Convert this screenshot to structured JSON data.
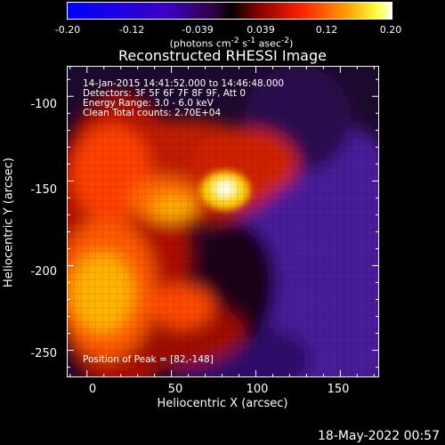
{
  "colorbar": {
    "ticks": [
      "-0.20",
      "-0.12",
      "-0.039",
      "0.039",
      "0.12",
      "0.20"
    ],
    "unit_html": "(photons cm<sup>-2</sup> s<sup>-1</sup> asec<sup>-2</sup>)",
    "range": [
      -0.2,
      0.2
    ]
  },
  "chart_data": {
    "type": "heatmap",
    "title": "Reconstructed RHESSI Image",
    "xlabel": "Heliocentric X (arcsec)",
    "ylabel": "Heliocentric Y (arcsec)",
    "xlim": [
      -12,
      173
    ],
    "ylim": [
      -266,
      -82
    ],
    "x_ticks": [
      "0",
      "50",
      "100",
      "150"
    ],
    "y_ticks": [
      "-100",
      "-150",
      "-200",
      "-250"
    ],
    "info_lines": [
      "14-Jan-2015 14:41:52.000 to 14:46:48.000",
      "Detectors: 3F 5F 6F 7F 8F 9F, Att 0",
      "Energy Range: 3.0 - 6.0 keV",
      "Clean    Total counts: 2.70E+04"
    ],
    "peak_label": "Position of Peak = [82,-148]",
    "peak": [
      82,
      -148
    ],
    "colormap": "blue-purple-red-yellow-white"
  },
  "footer_date": "18-May-2022 00:57"
}
